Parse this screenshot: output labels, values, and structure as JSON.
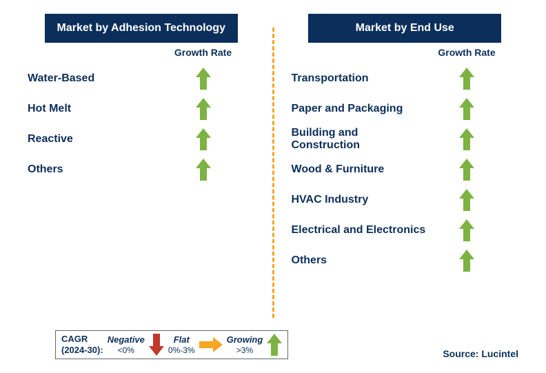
{
  "colors": {
    "header_bg": "#0b2e5a",
    "header_text": "#ffffff",
    "label_text": "#0b2e5a",
    "col_header_text": "#0b2e5a",
    "divider": "#f5a623",
    "arrow_growing": "#7cb342",
    "arrow_flat": "#f5a623",
    "arrow_negative": "#c0392b",
    "source_text": "#0b2e5a",
    "legend_text": "#0b2e5a",
    "legend_border": "#666666"
  },
  "left_panel": {
    "title": "Market by Adhesion Technology",
    "growth_header": "Growth Rate",
    "items": [
      {
        "label": "Water-Based",
        "growth": "growing"
      },
      {
        "label": "Hot Melt",
        "growth": "growing"
      },
      {
        "label": "Reactive",
        "growth": "growing"
      },
      {
        "label": "Others",
        "growth": "growing"
      }
    ]
  },
  "right_panel": {
    "title": "Market by End Use",
    "growth_header": "Growth Rate",
    "items": [
      {
        "label": "Transportation",
        "growth": "growing"
      },
      {
        "label": "Paper and Packaging",
        "growth": "growing"
      },
      {
        "label": "Building and Construction",
        "growth": "growing"
      },
      {
        "label": "Wood & Furniture",
        "growth": "growing"
      },
      {
        "label": "HVAC Industry",
        "growth": "growing"
      },
      {
        "label": "Electrical and Electronics",
        "growth": "growing"
      },
      {
        "label": "Others",
        "growth": "growing"
      }
    ]
  },
  "legend": {
    "label_line1": "CAGR",
    "label_line2": "(2024-30):",
    "items": [
      {
        "title": "Negative",
        "range": "<0%",
        "arrow": "negative"
      },
      {
        "title": "Flat",
        "range": "0%-3%",
        "arrow": "flat"
      },
      {
        "title": "Growing",
        "range": ">3%",
        "arrow": "growing"
      }
    ]
  },
  "source_prefix": "Source: ",
  "source": "Lucintel"
}
